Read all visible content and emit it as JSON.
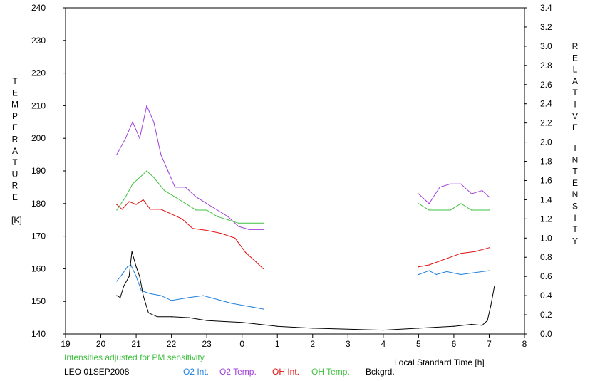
{
  "chart_data": {
    "type": "line",
    "left_axis": {
      "label_letters": [
        "T",
        "E",
        "M",
        "P",
        "E",
        "R",
        "A",
        "T",
        "U",
        "R",
        "E"
      ],
      "unit": "[K]",
      "ylim": [
        140,
        240
      ],
      "ticks": [
        140,
        150,
        160,
        170,
        180,
        190,
        200,
        210,
        220,
        230,
        240
      ]
    },
    "right_axis": {
      "label_word1": [
        "R",
        "E",
        "L",
        "A",
        "T",
        "I",
        "V",
        "E"
      ],
      "label_word2": [
        "I",
        "N",
        "T",
        "E",
        "N",
        "S",
        "I",
        "T",
        "Y"
      ],
      "ylim": [
        0.0,
        3.4
      ],
      "ticks": [
        "0.0",
        "0.2",
        "0.4",
        "0.6",
        "0.8",
        "1.0",
        "1.2",
        "1.4",
        "1.6",
        "1.8",
        "2.0",
        "2.2",
        "2.4",
        "2.6",
        "2.8",
        "3.0",
        "3.2",
        "3.4"
      ]
    },
    "x_axis": {
      "label": "Local Standard Time [h]",
      "range_hours": [
        19,
        32
      ],
      "tick_labels": [
        "19",
        "20",
        "21",
        "22",
        "23",
        "0",
        "1",
        "2",
        "3",
        "4",
        "5",
        "6",
        "7",
        "8"
      ]
    },
    "note": "Intensities adjusted for PM sensitivity",
    "station_date": "LEO 01SEP2008",
    "series": [
      {
        "name": "O2 Int.",
        "axis": "right",
        "color": "#1f7fdd",
        "points": [
          [
            20.45,
            0.55
          ],
          [
            20.6,
            0.62
          ],
          [
            20.75,
            0.7
          ],
          [
            20.85,
            0.72
          ],
          [
            21.0,
            0.6
          ],
          [
            21.15,
            0.45
          ],
          [
            21.4,
            0.42
          ],
          [
            21.7,
            0.4
          ],
          [
            22.0,
            0.35
          ],
          [
            22.5,
            0.38
          ],
          [
            22.9,
            0.4
          ],
          [
            23.3,
            0.36
          ],
          [
            23.7,
            0.32
          ],
          [
            24.0,
            0.3
          ],
          [
            24.3,
            0.28
          ],
          [
            24.6,
            0.26
          ],
          null,
          [
            29.0,
            0.62
          ],
          [
            29.3,
            0.66
          ],
          [
            29.5,
            0.62
          ],
          [
            29.8,
            0.65
          ],
          [
            30.2,
            0.62
          ],
          [
            30.6,
            0.64
          ],
          [
            31.0,
            0.66
          ]
        ]
      },
      {
        "name": "O2 Temp.",
        "axis": "left",
        "color": "#a040d8",
        "points": [
          [
            20.45,
            195
          ],
          [
            20.7,
            200
          ],
          [
            20.9,
            205
          ],
          [
            21.1,
            200
          ],
          [
            21.3,
            210
          ],
          [
            21.5,
            205
          ],
          [
            21.7,
            195
          ],
          [
            21.9,
            190
          ],
          [
            22.1,
            185
          ],
          [
            22.4,
            185
          ],
          [
            22.7,
            182
          ],
          [
            23.0,
            180
          ],
          [
            23.3,
            178
          ],
          [
            23.6,
            176
          ],
          [
            23.9,
            173
          ],
          [
            24.2,
            172
          ],
          [
            24.6,
            172
          ],
          null,
          [
            29.0,
            183
          ],
          [
            29.3,
            180
          ],
          [
            29.6,
            185
          ],
          [
            29.9,
            186
          ],
          [
            30.2,
            186
          ],
          [
            30.5,
            183
          ],
          [
            30.8,
            184
          ],
          [
            31.0,
            182
          ]
        ]
      },
      {
        "name": "OH Int.",
        "axis": "right",
        "color": "#e01010",
        "points": [
          [
            20.45,
            1.35
          ],
          [
            20.6,
            1.3
          ],
          [
            20.8,
            1.38
          ],
          [
            21.0,
            1.35
          ],
          [
            21.2,
            1.4
          ],
          [
            21.4,
            1.3
          ],
          [
            21.7,
            1.3
          ],
          [
            22.0,
            1.25
          ],
          [
            22.3,
            1.2
          ],
          [
            22.6,
            1.1
          ],
          [
            23.0,
            1.08
          ],
          [
            23.4,
            1.05
          ],
          [
            23.8,
            1.0
          ],
          [
            24.1,
            0.85
          ],
          [
            24.4,
            0.75
          ],
          [
            24.6,
            0.68
          ],
          null,
          [
            29.0,
            0.7
          ],
          [
            29.3,
            0.72
          ],
          [
            29.6,
            0.76
          ],
          [
            29.9,
            0.8
          ],
          [
            30.2,
            0.84
          ],
          [
            30.6,
            0.86
          ],
          [
            31.0,
            0.9
          ]
        ]
      },
      {
        "name": "OH Temp.",
        "axis": "left",
        "color": "#40c040",
        "points": [
          [
            20.45,
            178
          ],
          [
            20.7,
            182
          ],
          [
            20.9,
            186
          ],
          [
            21.1,
            188
          ],
          [
            21.3,
            190
          ],
          [
            21.5,
            188
          ],
          [
            21.8,
            184
          ],
          [
            22.1,
            182
          ],
          [
            22.4,
            180
          ],
          [
            22.7,
            178
          ],
          [
            23.0,
            178
          ],
          [
            23.3,
            176
          ],
          [
            23.6,
            175
          ],
          [
            23.9,
            174
          ],
          [
            24.2,
            174
          ],
          [
            24.6,
            174
          ],
          null,
          [
            29.0,
            180
          ],
          [
            29.3,
            178
          ],
          [
            29.6,
            178
          ],
          [
            29.9,
            178
          ],
          [
            30.2,
            180
          ],
          [
            30.5,
            178
          ],
          [
            30.8,
            178
          ],
          [
            31.0,
            178
          ]
        ]
      },
      {
        "name": "Bckgrd.",
        "axis": "right",
        "color": "#000000",
        "points": [
          [
            20.45,
            0.4
          ],
          [
            20.55,
            0.38
          ],
          [
            20.65,
            0.5
          ],
          [
            20.8,
            0.6
          ],
          [
            20.88,
            0.86
          ],
          [
            21.0,
            0.7
          ],
          [
            21.1,
            0.6
          ],
          [
            21.2,
            0.4
          ],
          [
            21.35,
            0.22
          ],
          [
            21.6,
            0.18
          ],
          [
            22.0,
            0.18
          ],
          [
            22.5,
            0.17
          ],
          [
            23.0,
            0.14
          ],
          [
            23.5,
            0.13
          ],
          [
            24.0,
            0.12
          ],
          [
            24.5,
            0.1
          ],
          [
            25.0,
            0.08
          ],
          [
            25.5,
            0.07
          ],
          [
            26.0,
            0.06
          ],
          [
            27.0,
            0.05
          ],
          [
            28.0,
            0.04
          ],
          [
            29.0,
            0.06
          ],
          [
            30.0,
            0.08
          ],
          [
            30.5,
            0.1
          ],
          [
            30.8,
            0.09
          ],
          [
            30.95,
            0.14
          ],
          [
            31.05,
            0.3
          ],
          [
            31.15,
            0.5
          ]
        ]
      }
    ]
  }
}
